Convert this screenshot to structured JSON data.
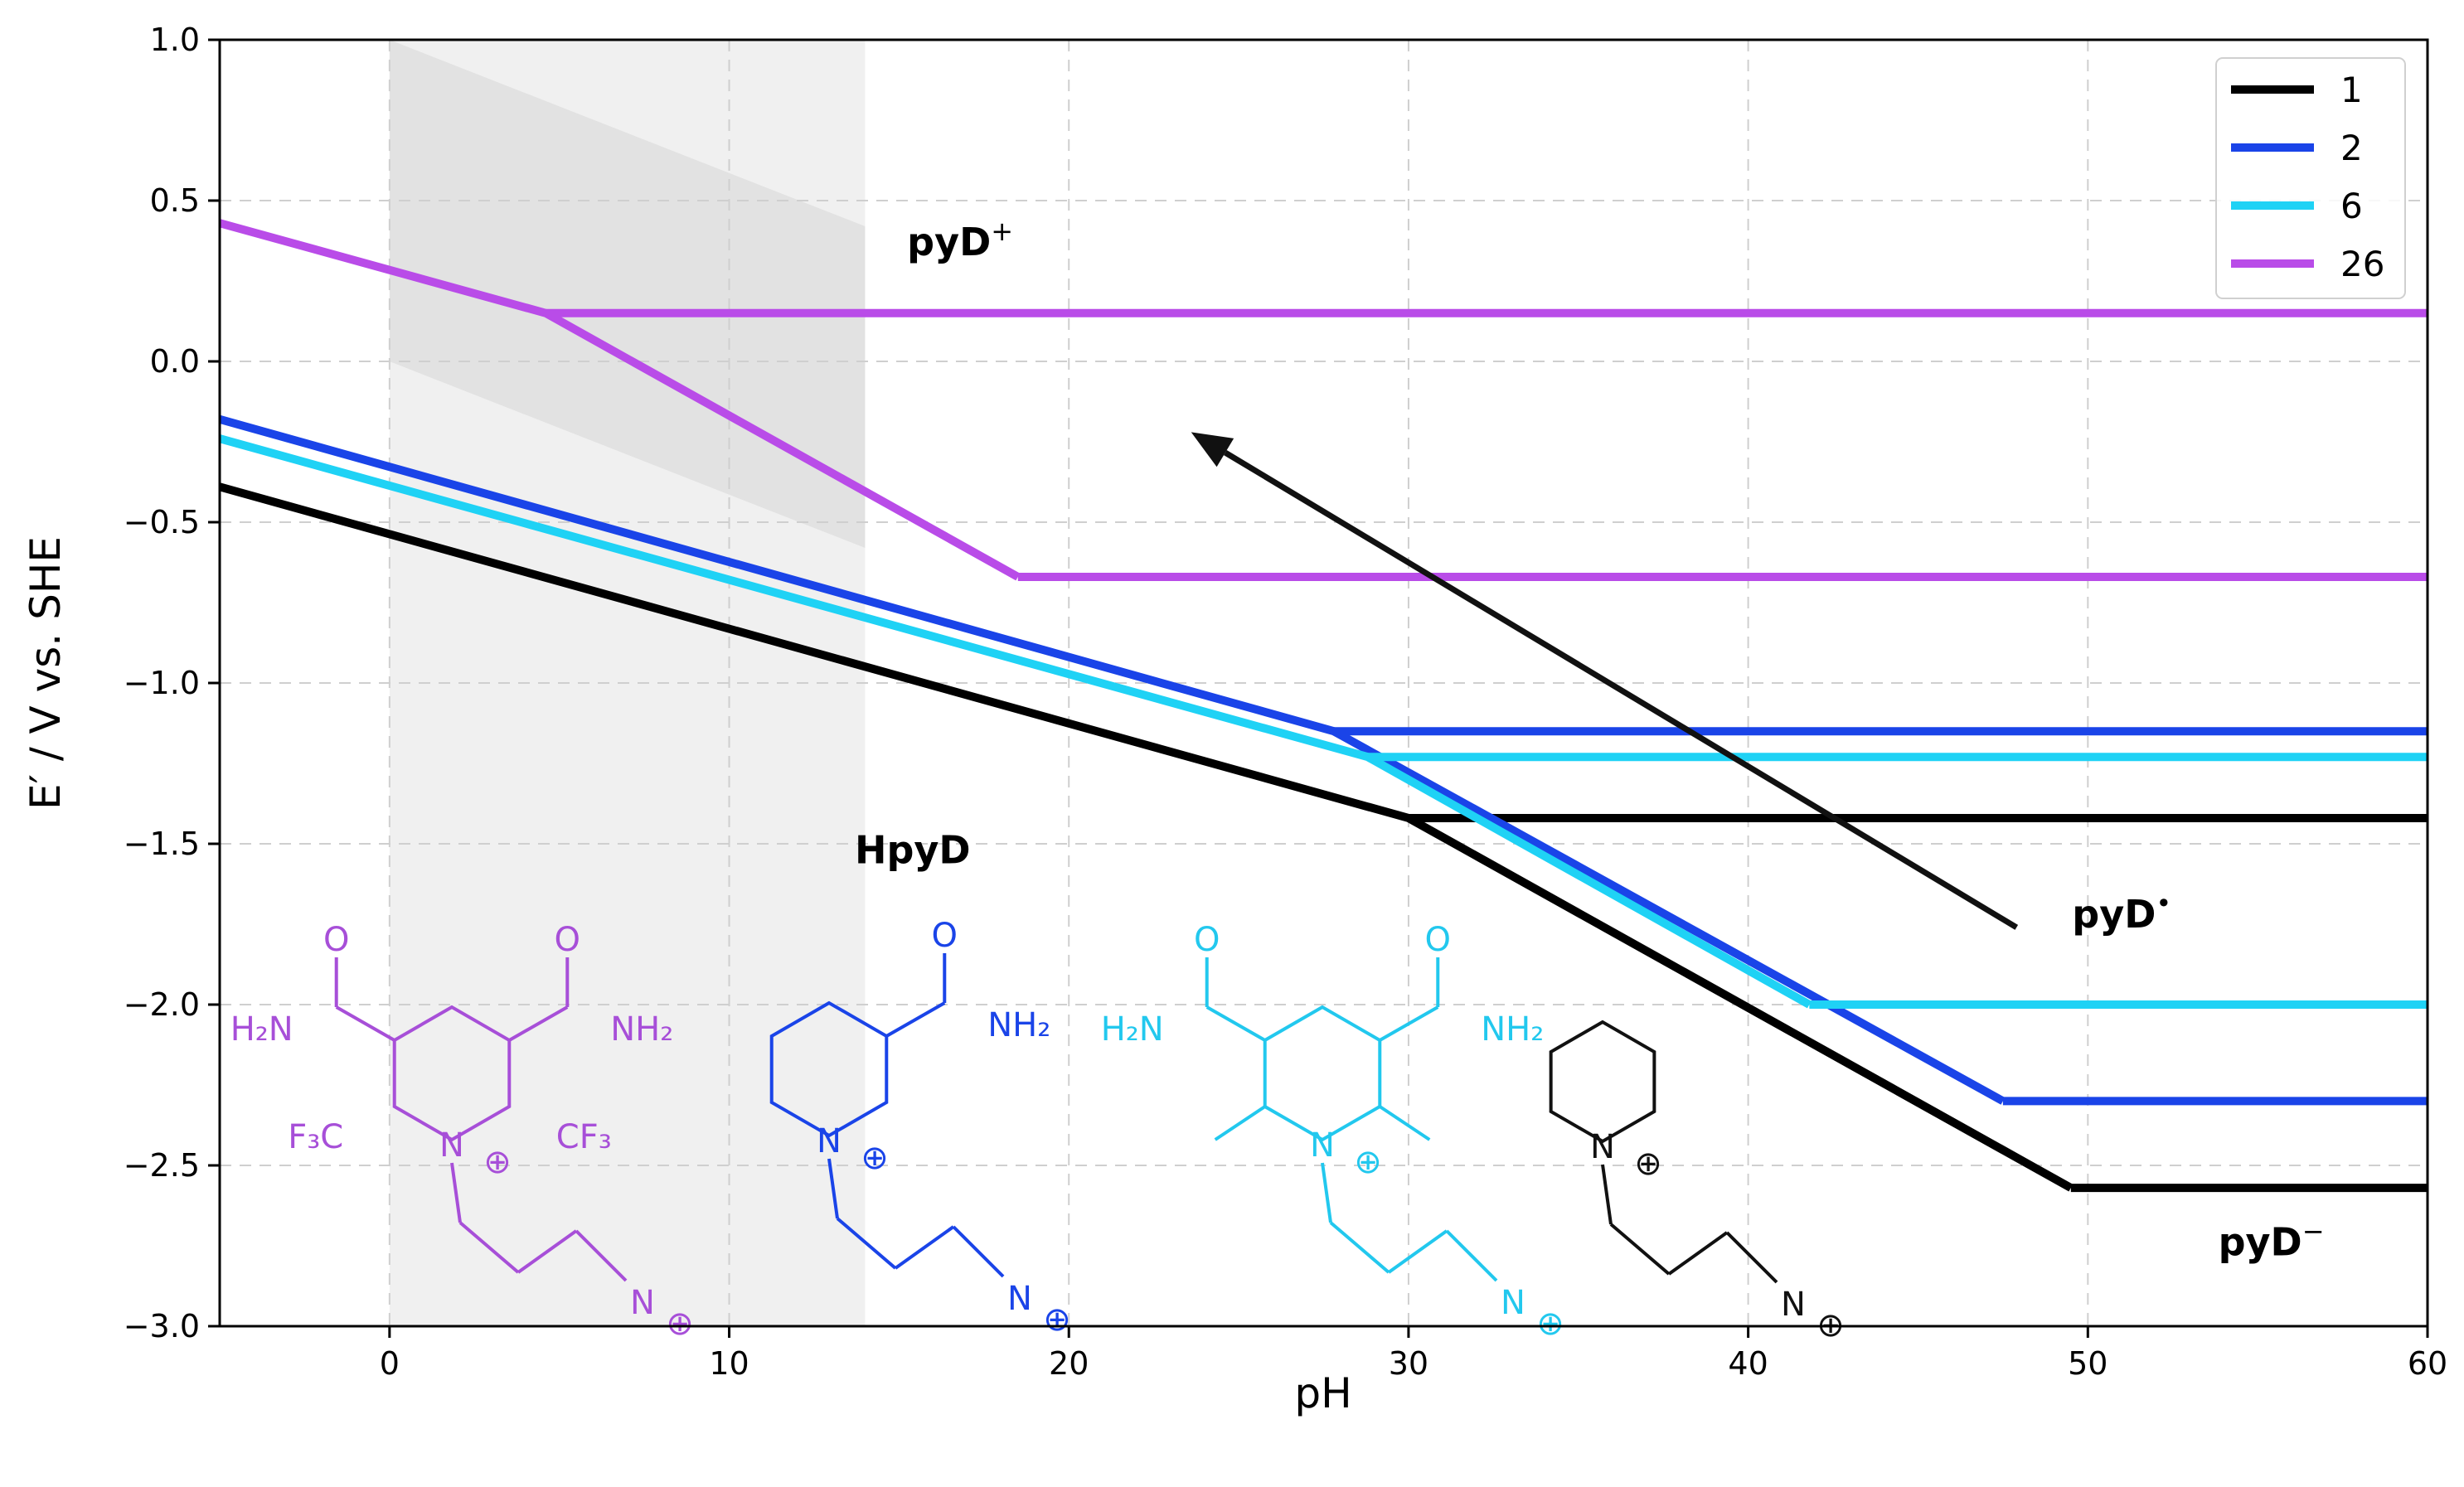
{
  "chart_data": {
    "type": "line",
    "xlabel": "pH",
    "ylabel": "E′ / V vs. SHE",
    "xlim": [
      -5,
      60
    ],
    "ylim": [
      -3.0,
      1.0
    ],
    "xticks": [
      0,
      10,
      20,
      30,
      40,
      50,
      60
    ],
    "yticks": [
      1.0,
      0.5,
      0.0,
      -0.5,
      -1.0,
      -1.5,
      -2.0,
      -2.5,
      -3.0
    ],
    "ytick_labels": [
      "1.0",
      "0.5",
      "0.0",
      "−0.5",
      "−1.0",
      "−1.5",
      "−2.0",
      "−2.5",
      "−3.0"
    ],
    "grid": true,
    "legend_position": "top-right",
    "shaded_region": {
      "x": [
        0,
        14
      ],
      "color": "#f0f0f0"
    },
    "shaded_band": {
      "x": [
        0,
        14
      ],
      "y_top": [
        1.0,
        0.42
      ],
      "y_bottom": [
        0.0,
        -0.58
      ],
      "color": "#e2e2e2"
    },
    "series": [
      {
        "name": "1",
        "color": "#000000",
        "lines": [
          {
            "x": [
              -5,
              30,
              49.5
            ],
            "y": [
              -0.39,
              -1.42,
              -2.57
            ]
          },
          {
            "x": [
              30,
              60
            ],
            "y": [
              -1.42,
              -1.42
            ]
          },
          {
            "x": [
              49.5,
              60
            ],
            "y": [
              -2.57,
              -2.57
            ]
          }
        ]
      },
      {
        "name": "2",
        "color": "#1a44e8",
        "lines": [
          {
            "x": [
              -5,
              27.8,
              47.5
            ],
            "y": [
              -0.18,
              -1.15,
              -2.3
            ]
          },
          {
            "x": [
              27.8,
              60
            ],
            "y": [
              -1.15,
              -1.15
            ]
          },
          {
            "x": [
              47.5,
              60
            ],
            "y": [
              -2.3,
              -2.3
            ]
          }
        ]
      },
      {
        "name": "6",
        "color": "#1fd2f5",
        "lines": [
          {
            "x": [
              -5,
              28.8,
              41.8
            ],
            "y": [
              -0.24,
              -1.23,
              -2.0
            ]
          },
          {
            "x": [
              28.8,
              60
            ],
            "y": [
              -1.23,
              -1.23
            ]
          },
          {
            "x": [
              41.8,
              60
            ],
            "y": [
              -2.0,
              -2.0
            ]
          }
        ]
      },
      {
        "name": "26",
        "color": "#b94ce8",
        "lines": [
          {
            "x": [
              -5,
              4.6,
              18.5
            ],
            "y": [
              0.43,
              0.15,
              -0.67
            ]
          },
          {
            "x": [
              4.6,
              60
            ],
            "y": [
              0.15,
              0.15
            ]
          },
          {
            "x": [
              18.5,
              60
            ],
            "y": [
              -0.67,
              -0.67
            ]
          }
        ]
      }
    ],
    "annotations": [
      {
        "text": "pyD",
        "superscript": "+",
        "x": 16.8,
        "y": 0.33
      },
      {
        "text": "HpyD",
        "superscript": "",
        "x": 15.4,
        "y": -1.56
      },
      {
        "text": "pyD",
        "superscript": "•",
        "x": 51.0,
        "y": -1.76
      },
      {
        "text": "pyD",
        "superscript": "−",
        "x": 55.4,
        "y": -2.78
      }
    ],
    "arrow": {
      "from": [
        47.9,
        -1.76
      ],
      "to": [
        23.6,
        -0.22
      ]
    }
  },
  "structures": [
    {
      "color": "#a74fd8",
      "labels": [
        "O",
        "O",
        "H₂N",
        "NH₂",
        "F₃C",
        "CF₃",
        "N",
        "⊕",
        "N",
        "⊕"
      ]
    },
    {
      "color": "#1a44e8",
      "labels": [
        "O",
        "NH₂",
        "N",
        "⊕",
        "N",
        "⊕"
      ]
    },
    {
      "color": "#22c8ee",
      "labels": [
        "O",
        "O",
        "H₂N",
        "NH₂",
        "N",
        "⊕",
        "N",
        "⊕"
      ]
    },
    {
      "color": "#111111",
      "labels": [
        "N",
        "⊕",
        "N",
        "⊕"
      ]
    }
  ]
}
